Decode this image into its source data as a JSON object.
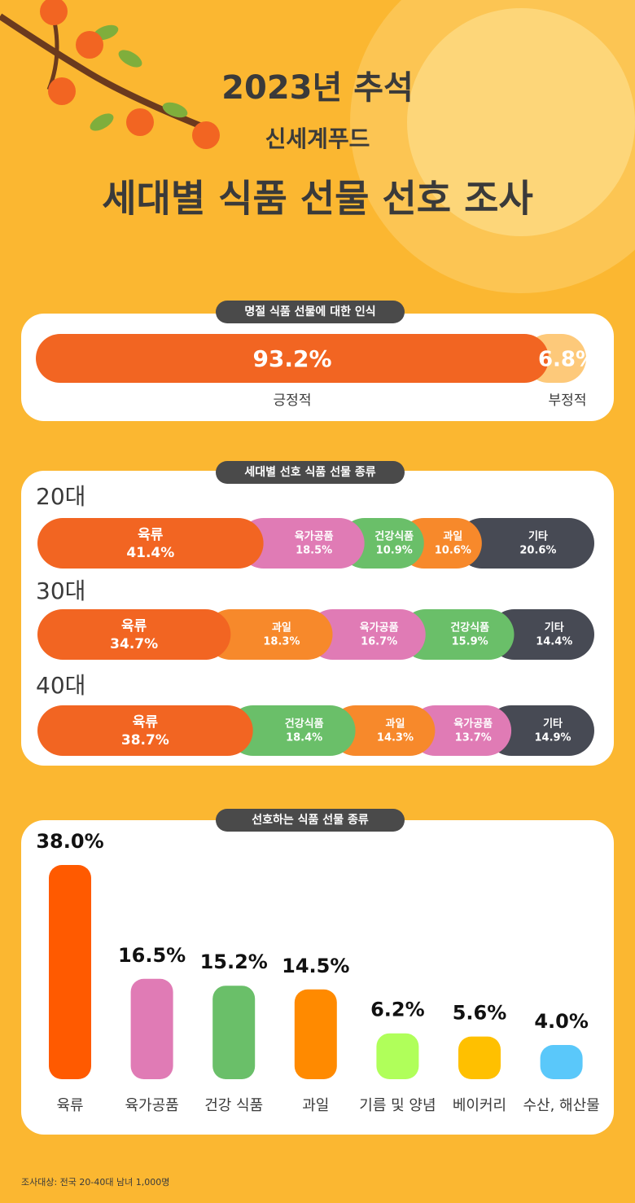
{
  "header": {
    "title": "2023년 추석",
    "brand": "신세계푸드",
    "headline": "세대별 식품 선물 선호 조사"
  },
  "chart_data": [
    {
      "type": "share-bar",
      "title": "명절 식품 선물에 대한 인식",
      "categories": [
        "긍정적",
        "부정적"
      ],
      "values": [
        93.2,
        6.8
      ],
      "value_labels": [
        "93.2%",
        "6.8%"
      ],
      "colors": [
        "#f26522",
        "#fdc97a"
      ]
    },
    {
      "type": "stacked-bar",
      "title": "세대별 선호 식품 선물 종류",
      "groups": [
        {
          "name": "20대",
          "categories": [
            "육류",
            "육가공품",
            "건강식품",
            "과일",
            "기타"
          ],
          "values": [
            41.4,
            18.5,
            10.9,
            10.6,
            20.6
          ],
          "value_labels": [
            "41.4%",
            "18.5%",
            "10.9%",
            "10.6%",
            "20.6%"
          ],
          "colors": [
            "#f26522",
            "#e07bb5",
            "#6abf69",
            "#f7892b",
            "#474a54"
          ]
        },
        {
          "name": "30대",
          "categories": [
            "육류",
            "과일",
            "육가공품",
            "건강식품",
            "기타"
          ],
          "values": [
            34.7,
            18.3,
            16.7,
            15.9,
            14.4
          ],
          "value_labels": [
            "34.7%",
            "18.3%",
            "16.7%",
            "15.9%",
            "14.4%"
          ],
          "colors": [
            "#f26522",
            "#f7892b",
            "#e07bb5",
            "#6abf69",
            "#474a54"
          ]
        },
        {
          "name": "40대",
          "categories": [
            "육류",
            "건강식품",
            "과일",
            "육가공품",
            "기타"
          ],
          "values": [
            38.7,
            18.4,
            14.3,
            13.7,
            14.9
          ],
          "value_labels": [
            "38.7%",
            "18.4%",
            "14.3%",
            "13.7%",
            "14.9%"
          ],
          "colors": [
            "#f26522",
            "#6abf69",
            "#f7892b",
            "#e07bb5",
            "#474a54"
          ]
        }
      ]
    },
    {
      "type": "bar",
      "title": "선호하는 식품 선물 종류",
      "categories": [
        "육류",
        "육가공품",
        "건강 식품",
        "과일",
        "기름 및 양념",
        "베이커리",
        "수산, 해산물"
      ],
      "values": [
        38.0,
        16.5,
        15.2,
        14.5,
        6.2,
        5.6,
        4.0
      ],
      "value_labels": [
        "38.0%",
        "16.5%",
        "15.2%",
        "14.5%",
        "6.2%",
        "5.6%",
        "4.0%"
      ],
      "colors": [
        "#ff5a00",
        "#e07bb5",
        "#6abf69",
        "#ff8a00",
        "#b0ff5a",
        "#ffc000",
        "#5ac8fa"
      ]
    }
  ],
  "footnote": "조사대상: 전국 20-40대 남녀 1,000명"
}
